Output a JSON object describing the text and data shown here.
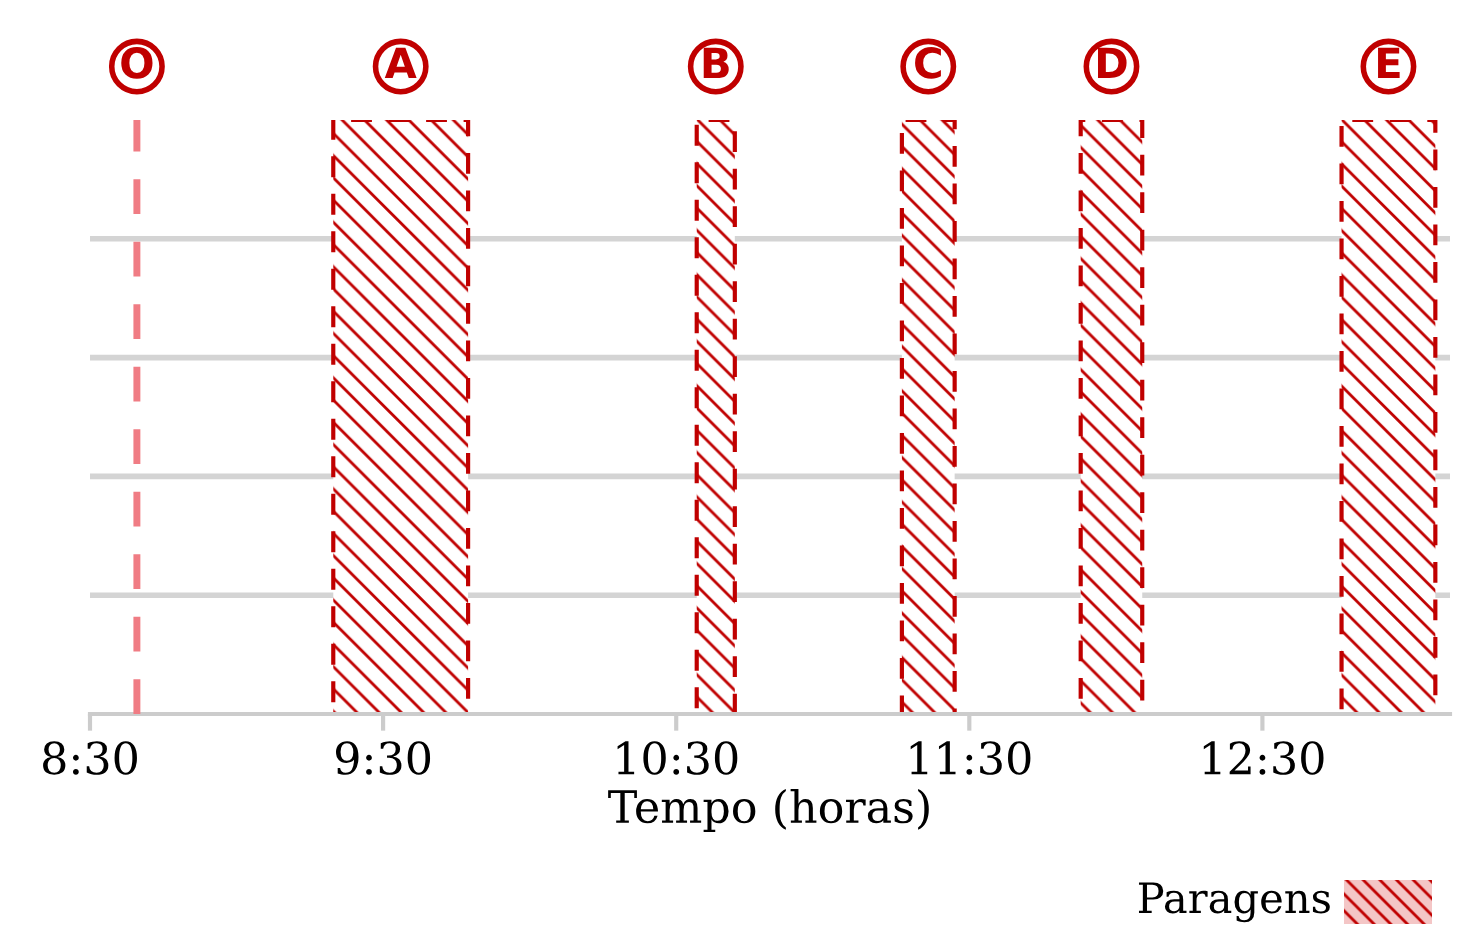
{
  "chart_data": {
    "type": "bar",
    "orientation": "horizontal",
    "xlabel": "Tempo (horas)",
    "legend_title": "Paragens",
    "legend": "top",
    "categories": [
      null
    ],
    "series": [
      {
        "name": "A",
        "color": "#c00000",
        "base": [
          9.33
        ],
        "values": [
          0.46
        ]
      },
      {
        "name": "B",
        "color": "#c00000",
        "base": [
          10.57
        ],
        "values": [
          0.13
        ]
      },
      {
        "name": "C",
        "color": "#c00000",
        "base": [
          11.27
        ],
        "values": [
          0.18
        ]
      },
      {
        "name": "D",
        "color": "#c00000",
        "base": [
          11.88
        ],
        "values": [
          0.21
        ]
      },
      {
        "name": "E",
        "color": "#c00000",
        "base": [
          12.77
        ],
        "values": [
          0.32
        ]
      }
    ],
    "xlim": [
      8.5,
      13.14
    ],
    "xticks": [
      {
        "value": 8.5,
        "label": "8:30"
      },
      {
        "value": 9.5,
        "label": "9:30"
      },
      {
        "value": 10.5,
        "label": "10:30"
      },
      {
        "value": 11.5,
        "label": "11:30"
      },
      {
        "value": 12.5,
        "label": "12:30"
      }
    ],
    "grid": "y",
    "ref_lines": [
      {
        "axis": "x",
        "value": 8.66,
        "label": "O",
        "color": "#f07c84",
        "line_style": "dashed"
      }
    ]
  }
}
